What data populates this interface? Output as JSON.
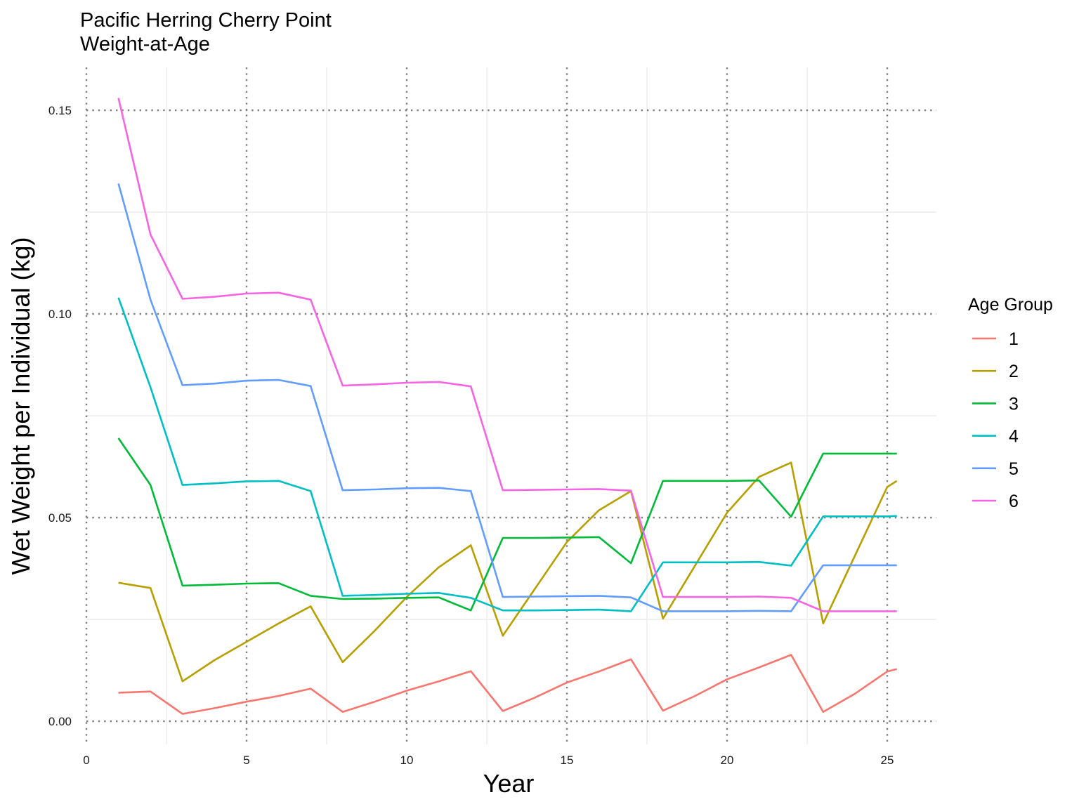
{
  "chart_data": {
    "type": "line",
    "title": "Pacific Herring Cherry Point",
    "subtitle": "Weight-at-Age",
    "xlabel": "Year",
    "ylabel": "Wet Weight per Individual (kg)",
    "xlim": [
      0,
      26.5
    ],
    "ylim": [
      -0.006,
      0.16
    ],
    "x_ticks": [
      0,
      5,
      10,
      15,
      20,
      25
    ],
    "y_ticks": [
      0.0,
      0.05,
      0.1,
      0.15
    ],
    "y_tick_labels": [
      "0.00",
      "0.05",
      "0.10",
      "0.15"
    ],
    "grid": "on (major dotted grey, minor solid light)",
    "legend_title": "Age Group",
    "legend_position": "right",
    "x": [
      1,
      2,
      3,
      4,
      5,
      6,
      7,
      8,
      9,
      10,
      11,
      12,
      13,
      14,
      15,
      16,
      17,
      18,
      19,
      20,
      21,
      22,
      23,
      24,
      25,
      25.3
    ],
    "series": [
      {
        "name": "1",
        "color": "#F8766D",
        "values": [
          0.007,
          0.0073,
          0.0018,
          0.0032,
          0.0048,
          0.0062,
          0.008,
          0.0023,
          0.0048,
          0.0075,
          0.0098,
          0.0123,
          0.0025,
          0.0058,
          0.0095,
          0.0122,
          0.0152,
          0.0026,
          0.0062,
          0.0103,
          0.0132,
          0.0163,
          0.0023,
          0.0068,
          0.0122,
          0.0128
        ]
      },
      {
        "name": "2",
        "color": "#B79F00",
        "values": [
          0.034,
          0.0327,
          0.0098,
          0.015,
          0.0195,
          0.024,
          0.0282,
          0.0145,
          0.0222,
          0.0305,
          0.0378,
          0.0432,
          0.021,
          0.0325,
          0.044,
          0.0518,
          0.0565,
          0.0252,
          0.0382,
          0.0512,
          0.06,
          0.0635,
          0.024,
          0.0408,
          0.0575,
          0.059
        ]
      },
      {
        "name": "3",
        "color": "#00BA38",
        "values": [
          0.0695,
          0.058,
          0.0333,
          0.0335,
          0.0338,
          0.0339,
          0.0308,
          0.03,
          0.0301,
          0.0303,
          0.0304,
          0.0272,
          0.045,
          0.045,
          0.0451,
          0.0452,
          0.0388,
          0.059,
          0.059,
          0.059,
          0.0591,
          0.0502,
          0.0657,
          0.0657,
          0.0657,
          0.0657
        ]
      },
      {
        "name": "4",
        "color": "#00BFC4",
        "values": [
          0.104,
          0.082,
          0.058,
          0.0584,
          0.0589,
          0.059,
          0.0565,
          0.0308,
          0.031,
          0.0313,
          0.0315,
          0.0303,
          0.0272,
          0.0272,
          0.0273,
          0.0274,
          0.027,
          0.039,
          0.039,
          0.039,
          0.0391,
          0.0382,
          0.0503,
          0.0503,
          0.0503,
          0.0504
        ]
      },
      {
        "name": "5",
        "color": "#619CFF",
        "values": [
          0.132,
          0.1035,
          0.0825,
          0.0829,
          0.0836,
          0.0838,
          0.0823,
          0.0567,
          0.0569,
          0.0572,
          0.0573,
          0.0565,
          0.0305,
          0.0306,
          0.0307,
          0.0308,
          0.0304,
          0.027,
          0.027,
          0.027,
          0.0271,
          0.027,
          0.0383,
          0.0383,
          0.0383,
          0.0383
        ]
      },
      {
        "name": "6",
        "color": "#F564E3",
        "values": [
          0.153,
          0.1195,
          0.1037,
          0.1042,
          0.105,
          0.1052,
          0.1035,
          0.0824,
          0.0827,
          0.0831,
          0.0833,
          0.0822,
          0.0567,
          0.0568,
          0.0569,
          0.057,
          0.0566,
          0.0305,
          0.0305,
          0.0305,
          0.0306,
          0.0303,
          0.027,
          0.027,
          0.027,
          0.027
        ]
      }
    ]
  }
}
